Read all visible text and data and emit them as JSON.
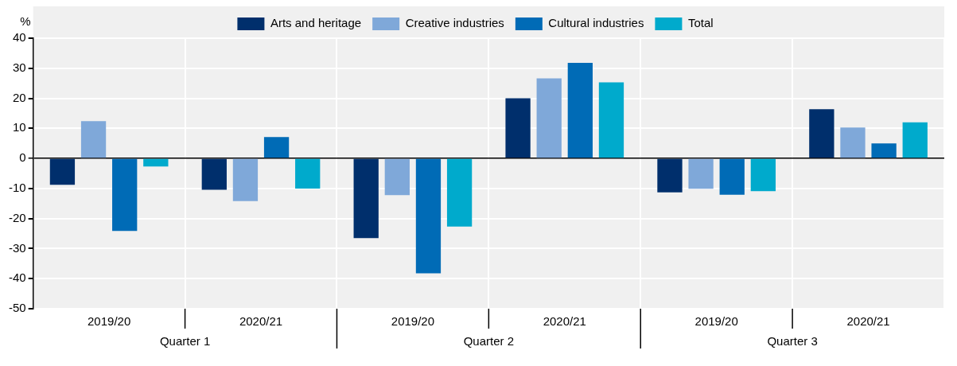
{
  "chart_data": {
    "type": "bar",
    "ylabel": "%",
    "categories": [
      "2019/20",
      "2020/21",
      "2019/20",
      "2020/21",
      "2019/20",
      "2020/21"
    ],
    "annotations": [
      "Quarter 1",
      "Quarter 2",
      "Quarter 3"
    ],
    "series": [
      {
        "name": "Arts and heritage",
        "color": "#002f6c",
        "values": [
          -8.8,
          -10.4,
          -26.5,
          20.0,
          -11.3,
          16.4
        ]
      },
      {
        "name": "Creative industries",
        "color": "#7fa8d9",
        "values": [
          12.4,
          -14.2,
          -12.2,
          26.6,
          -10.1,
          10.3
        ]
      },
      {
        "name": "Cultural industries",
        "color": "#006bb6",
        "values": [
          -24.1,
          7.1,
          -38.2,
          31.8,
          -12.1,
          5.0
        ]
      },
      {
        "name": "Total",
        "color": "#00aacc",
        "values": [
          -2.7,
          -10.0,
          -22.7,
          25.3,
          -10.9,
          12.0
        ]
      }
    ],
    "ylim": [
      -50,
      40
    ],
    "yticks": [
      -50,
      -40,
      -30,
      -20,
      -10,
      0,
      10,
      20,
      30,
      40
    ],
    "grid": true,
    "legend": "top"
  }
}
